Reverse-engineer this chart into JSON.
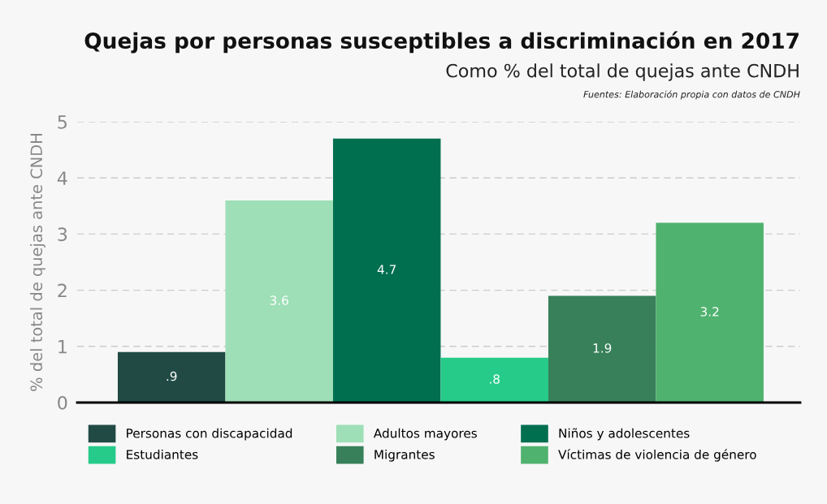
{
  "chart_data": {
    "type": "bar",
    "title": "Quejas por personas susceptibles a discriminación en 2017",
    "subtitle": "Como % del total de quejas ante CNDH",
    "annotations": [
      "Fuentes: Elaboración propia con datos de CNDH"
    ],
    "ylabel": "% del total de quejas ante CNDH",
    "categories": [
      null
    ],
    "ylim": [
      0,
      5
    ],
    "yticks": [
      0,
      1,
      2,
      3,
      4,
      5
    ],
    "grid": "y",
    "legend": "bottom",
    "series": [
      {
        "name": "Personas con discapacidad",
        "color": "#214a44",
        "values": [
          0.9
        ],
        "value_labels": [
          ".9"
        ]
      },
      {
        "name": "Adultos mayores",
        "color": "#9edfb7",
        "values": [
          3.6
        ],
        "value_labels": [
          "3.6"
        ]
      },
      {
        "name": "Niños y adolescentes",
        "color": "#006f50",
        "values": [
          4.7
        ],
        "value_labels": [
          "4.7"
        ]
      },
      {
        "name": "Estudiantes",
        "color": "#26cb8a",
        "values": [
          0.8
        ],
        "value_labels": [
          ".8"
        ]
      },
      {
        "name": "Migrantes",
        "color": "#37805a",
        "values": [
          1.9
        ],
        "value_labels": [
          "1.9"
        ]
      },
      {
        "name": "Víctimas de violencia de género",
        "color": "#50b26f",
        "values": [
          3.2
        ],
        "value_labels": [
          "3.2"
        ]
      }
    ]
  }
}
